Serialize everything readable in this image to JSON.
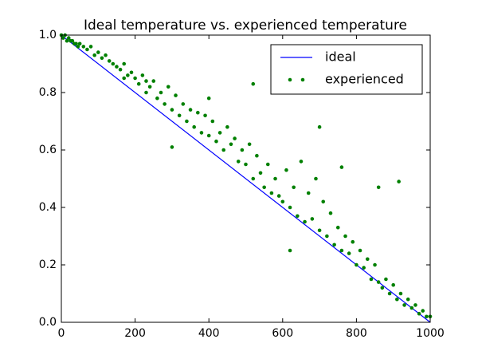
{
  "chart_data": {
    "type": "scatter",
    "title": "Ideal temperature vs. experienced temperature",
    "xlim": [
      0,
      1000
    ],
    "xticks": [
      0,
      200,
      400,
      600,
      800,
      1000
    ],
    "ylim": [
      0.0,
      1.0
    ],
    "yticks": [
      {
        "value": 0,
        "label": "0.0"
      },
      0.2,
      0.4,
      0.6,
      0.8,
      {
        "value": 1,
        "label": "1.0"
      }
    ],
    "legend": "upper right",
    "series": [
      {
        "name": "ideal",
        "type": "line",
        "color": "#0000ff",
        "x": [
          0,
          1000
        ],
        "values": [
          1,
          0
        ]
      },
      {
        "name": "experienced",
        "type": "scatter",
        "color": "#008000",
        "x": [
          0,
          5,
          10,
          15,
          20,
          25,
          30,
          35,
          40,
          45,
          50,
          60,
          70,
          80,
          90,
          100,
          110,
          120,
          130,
          140,
          150,
          160,
          170,
          180,
          190,
          200,
          210,
          220,
          230,
          240,
          250,
          260,
          270,
          280,
          290,
          300,
          310,
          320,
          330,
          340,
          350,
          360,
          370,
          380,
          390,
          400,
          410,
          420,
          430,
          440,
          450,
          460,
          470,
          480,
          490,
          500,
          510,
          520,
          530,
          540,
          550,
          560,
          570,
          580,
          590,
          600,
          610,
          620,
          630,
          640,
          650,
          660,
          670,
          680,
          690,
          700,
          710,
          720,
          730,
          740,
          750,
          760,
          770,
          780,
          790,
          800,
          810,
          820,
          830,
          840,
          850,
          860,
          870,
          880,
          890,
          900,
          910,
          920,
          930,
          940,
          950,
          960,
          970,
          980,
          990,
          1000,
          230,
          520,
          700,
          760,
          860,
          915,
          300,
          170,
          400,
          620
        ],
        "values": [
          1.0,
          0.99,
          1.0,
          0.98,
          0.99,
          0.98,
          0.98,
          0.97,
          0.97,
          0.96,
          0.97,
          0.96,
          0.95,
          0.96,
          0.93,
          0.94,
          0.92,
          0.93,
          0.91,
          0.9,
          0.89,
          0.88,
          0.9,
          0.86,
          0.87,
          0.85,
          0.83,
          0.86,
          0.8,
          0.82,
          0.84,
          0.78,
          0.8,
          0.76,
          0.82,
          0.74,
          0.79,
          0.72,
          0.76,
          0.7,
          0.74,
          0.68,
          0.73,
          0.66,
          0.72,
          0.65,
          0.7,
          0.63,
          0.66,
          0.6,
          0.68,
          0.62,
          0.64,
          0.56,
          0.6,
          0.55,
          0.62,
          0.5,
          0.58,
          0.52,
          0.47,
          0.55,
          0.45,
          0.5,
          0.44,
          0.42,
          0.53,
          0.4,
          0.47,
          0.37,
          0.56,
          0.35,
          0.45,
          0.36,
          0.5,
          0.32,
          0.42,
          0.3,
          0.38,
          0.27,
          0.33,
          0.25,
          0.3,
          0.24,
          0.28,
          0.2,
          0.25,
          0.19,
          0.22,
          0.15,
          0.2,
          0.14,
          0.12,
          0.15,
          0.1,
          0.13,
          0.08,
          0.1,
          0.06,
          0.08,
          0.05,
          0.06,
          0.03,
          0.04,
          0.02,
          0.02,
          0.84,
          0.83,
          0.68,
          0.54,
          0.47,
          0.49,
          0.61,
          0.85,
          0.78,
          0.25
        ]
      }
    ]
  }
}
